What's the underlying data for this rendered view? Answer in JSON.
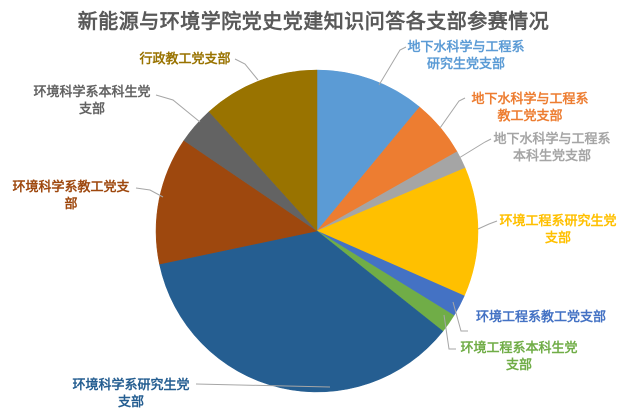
{
  "chart_data": {
    "type": "pie",
    "title": "新能源与环境学院党史党建知识问答各支部参赛情况",
    "title_color": "#595959",
    "legend": "none",
    "start_angle_deg": 0,
    "direction": "clockwise",
    "data_labels": "category names beside slices, text colored to match slice, gray leader lines",
    "leader_line_color": "#A6A6A6",
    "background_color": "#FFFFFF",
    "slices": [
      {
        "label": "地下水科学与工程系研究生党支部",
        "display": "地下水科学与工程系\n研究生党支部",
        "value_pct": 11.0,
        "color": "#5B9BD5"
      },
      {
        "label": "地下水科学与工程系教工党支部",
        "display": "地下水科学与工程系\n教工党支部",
        "value_pct": 5.8,
        "color": "#ED7D31"
      },
      {
        "label": "地下水科学与工程系本科生党支部",
        "display": "地下水科学与工程系\n本科生党支部",
        "value_pct": 1.8,
        "color": "#A5A5A5"
      },
      {
        "label": "环境工程系研究生党支部",
        "display": "环境工程系研究生党\n支部",
        "value_pct": 13.0,
        "color": "#FFC000"
      },
      {
        "label": "环境工程系教工党支部",
        "display": "环境工程系教工党支部",
        "value_pct": 2.2,
        "color": "#4472C4"
      },
      {
        "label": "环境工程系本科生党支部",
        "display": "环境工程系本科生党\n支部",
        "value_pct": 1.9,
        "color": "#70AD47"
      },
      {
        "label": "环境科学系研究生党支部",
        "display": "环境科学系研究生党\n支部",
        "value_pct": 36.0,
        "color": "#255E91"
      },
      {
        "label": "环境科学系教工党支部",
        "display": "环境科学系教工党支\n部",
        "value_pct": 12.8,
        "color": "#9E480E"
      },
      {
        "label": "环境科学系本科生党支部",
        "display": "环境科学系本科生党\n支部",
        "value_pct": 3.8,
        "color": "#636363"
      },
      {
        "label": "行政教工党支部",
        "display": "行政教工党支部",
        "value_pct": 11.7,
        "color": "#997300"
      }
    ]
  }
}
